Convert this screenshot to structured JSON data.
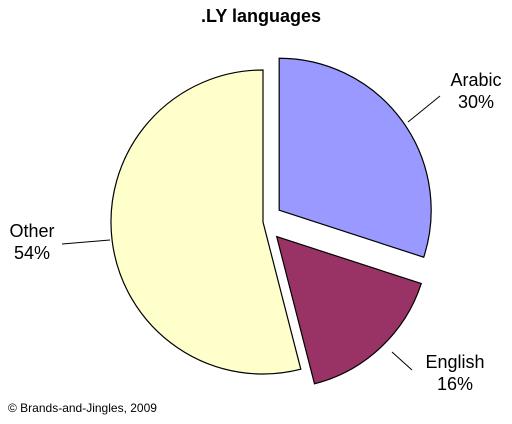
{
  "chart_data": {
    "type": "pie",
    "title": ".LY languages",
    "slices": [
      {
        "label": "Arabic",
        "value": 30,
        "value_label": "30%",
        "color": "#9999ff",
        "exploded": true
      },
      {
        "label": "English",
        "value": 16,
        "value_label": "16%",
        "color": "#993366",
        "exploded": true
      },
      {
        "label": "Other",
        "value": 54,
        "value_label": "54%",
        "color": "#ffffcc",
        "exploded": false
      }
    ],
    "start": "12 o'clock",
    "direction": "clockwise",
    "legend": "none"
  },
  "footer": {
    "copyright": "© Brands-and-Jingles, 2009"
  }
}
